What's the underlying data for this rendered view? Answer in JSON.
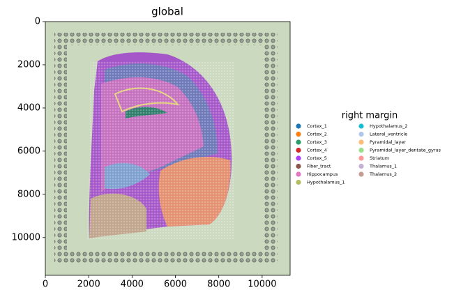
{
  "chart_data": {
    "type": "scatter",
    "title": "global",
    "legend_title": "right margin",
    "xlim": [
      0,
      11290
    ],
    "ylim": [
      11750,
      0
    ],
    "xticks": [
      0,
      2000,
      4000,
      6000,
      8000,
      10000
    ],
    "yticks": [
      0,
      2000,
      4000,
      6000,
      8000,
      10000
    ],
    "legend_columns": 2,
    "series": [
      {
        "name": "Cortex_1",
        "color": "#1f77b4"
      },
      {
        "name": "Cortex_2",
        "color": "#ff7f0e"
      },
      {
        "name": "Cortex_3",
        "color": "#279e68"
      },
      {
        "name": "Cortex_4",
        "color": "#d62728"
      },
      {
        "name": "Cortex_5",
        "color": "#aa40fc"
      },
      {
        "name": "Fiber_tract",
        "color": "#8c564b"
      },
      {
        "name": "Hippocampus",
        "color": "#e377c2"
      },
      {
        "name": "Hypothalamus_1",
        "color": "#b5bd61"
      },
      {
        "name": "Hypothalamus_2",
        "color": "#17becf"
      },
      {
        "name": "Lateral_ventricle",
        "color": "#aec7e8"
      },
      {
        "name": "Pyramidal_layer",
        "color": "#ffbb78"
      },
      {
        "name": "Pyramidal_layer_dentate_gyrus",
        "color": "#98df8a"
      },
      {
        "name": "Striatum",
        "color": "#ff9896"
      },
      {
        "name": "Thalamus_1",
        "color": "#c5b0d5"
      },
      {
        "name": "Thalamus_2",
        "color": "#c49c94"
      }
    ]
  }
}
